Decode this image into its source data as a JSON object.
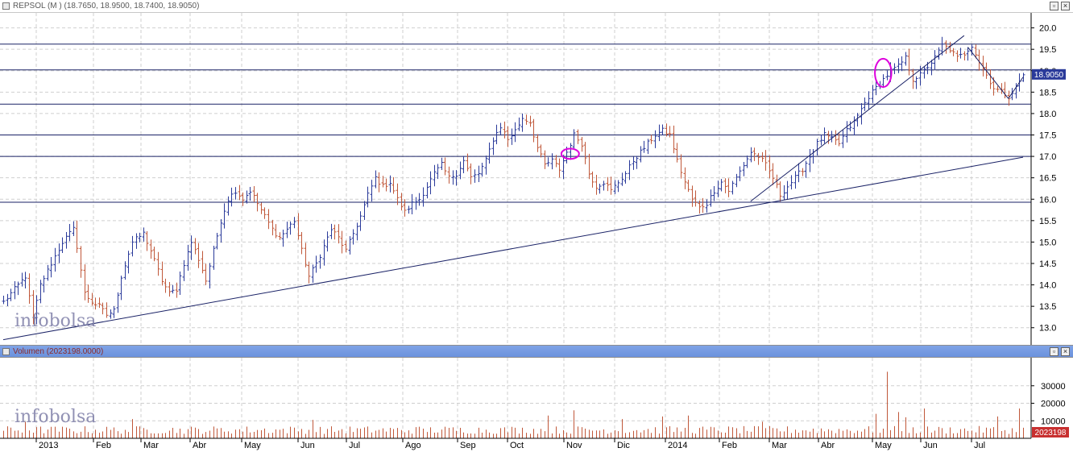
{
  "price_panel": {
    "title": "REPSOL (M ) (18.7650, 18.9500, 18.7400, 18.9050)",
    "watermark": "infobolsa",
    "last_value_label": "18.9050"
  },
  "volume_panel": {
    "title": "Volumen (2023198.0000)",
    "watermark": "infobolsa",
    "last_value_label": "2023198"
  },
  "colors": {
    "up_bar": "#2a3a9a",
    "down_bar": "#c0583a",
    "line": "#1a2266",
    "marker": "#dd00dd",
    "volume_bar": "#c0583a",
    "last_price_badge": "#2a3a9a",
    "last_volume_badge": "#c83030"
  },
  "chart_data": [
    {
      "type": "ohlc",
      "series_name": "REPSOL",
      "ohlc_last": {
        "open": 18.765,
        "high": 18.95,
        "low": 18.74,
        "close": 18.905
      },
      "y_ticks": [
        13.0,
        13.5,
        14.0,
        14.5,
        15.0,
        15.5,
        16.0,
        16.5,
        17.0,
        17.5,
        18.0,
        18.5,
        19.0,
        19.5,
        20.0
      ],
      "ylim": [
        12.6,
        20.35
      ],
      "x_labels": [
        "2013",
        "Feb",
        "Mar",
        "Abr",
        "May",
        "Jun",
        "Jul",
        "Ago",
        "Sep",
        "Oct",
        "Nov",
        "Dic",
        "2014",
        "Feb",
        "Mar",
        "Abr",
        "May",
        "Jun",
        "Jul"
      ],
      "horizontal_levels": [
        19.62,
        19.02,
        18.22,
        17.5,
        17.0,
        15.93
      ],
      "close_path": [
        [
          0,
          13.6
        ],
        [
          3,
          13.9
        ],
        [
          6,
          14.2
        ],
        [
          8,
          13.2
        ],
        [
          10,
          14.0
        ],
        [
          13,
          14.5
        ],
        [
          16,
          15.0
        ],
        [
          19,
          15.3
        ],
        [
          20,
          14.9
        ],
        [
          22,
          13.8
        ],
        [
          24,
          13.6
        ],
        [
          26,
          13.5
        ],
        [
          28,
          13.3
        ],
        [
          30,
          13.4
        ],
        [
          32,
          14.2
        ],
        [
          35,
          15.0
        ],
        [
          38,
          15.2
        ],
        [
          40,
          14.8
        ],
        [
          43,
          14.1
        ],
        [
          45,
          13.8
        ],
        [
          47,
          13.9
        ],
        [
          49,
          14.5
        ],
        [
          51,
          15.0
        ],
        [
          53,
          14.6
        ],
        [
          55,
          14.1
        ],
        [
          57,
          14.8
        ],
        [
          59,
          15.5
        ],
        [
          61,
          16.0
        ],
        [
          63,
          16.2
        ],
        [
          65,
          16.0
        ],
        [
          67,
          16.2
        ],
        [
          69,
          15.9
        ],
        [
          71,
          15.6
        ],
        [
          73,
          15.3
        ],
        [
          75,
          15.1
        ],
        [
          77,
          15.3
        ],
        [
          79,
          15.5
        ],
        [
          81,
          14.8
        ],
        [
          83,
          14.2
        ],
        [
          85,
          14.5
        ],
        [
          87,
          14.9
        ],
        [
          89,
          15.3
        ],
        [
          91,
          15.1
        ],
        [
          93,
          14.8
        ],
        [
          95,
          15.2
        ],
        [
          97,
          15.6
        ],
        [
          99,
          16.1
        ],
        [
          101,
          16.5
        ],
        [
          103,
          16.3
        ],
        [
          105,
          16.4
        ],
        [
          107,
          16.0
        ],
        [
          109,
          15.7
        ],
        [
          111,
          15.9
        ],
        [
          113,
          16.0
        ],
        [
          115,
          16.3
        ],
        [
          117,
          16.6
        ],
        [
          119,
          16.8
        ],
        [
          121,
          16.5
        ],
        [
          123,
          16.6
        ],
        [
          125,
          16.9
        ],
        [
          127,
          16.5
        ],
        [
          129,
          16.6
        ],
        [
          131,
          16.9
        ],
        [
          133,
          17.4
        ],
        [
          135,
          17.7
        ],
        [
          137,
          17.4
        ],
        [
          139,
          17.6
        ],
        [
          141,
          17.9
        ],
        [
          143,
          17.8
        ],
        [
          145,
          17.2
        ],
        [
          147,
          16.8
        ],
        [
          149,
          16.9
        ],
        [
          151,
          16.7
        ],
        [
          153,
          17.1
        ],
        [
          155,
          17.5
        ],
        [
          157,
          17.3
        ],
        [
          159,
          16.6
        ],
        [
          161,
          16.3
        ],
        [
          163,
          16.4
        ],
        [
          165,
          16.2
        ],
        [
          167,
          16.4
        ],
        [
          169,
          16.6
        ],
        [
          171,
          16.9
        ],
        [
          173,
          17.1
        ],
        [
          175,
          17.3
        ],
        [
          177,
          17.5
        ],
        [
          179,
          17.6
        ],
        [
          181,
          17.5
        ],
        [
          183,
          16.9
        ],
        [
          185,
          16.4
        ],
        [
          187,
          16.0
        ],
        [
          189,
          15.8
        ],
        [
          191,
          15.9
        ],
        [
          193,
          16.2
        ],
        [
          195,
          16.4
        ],
        [
          197,
          16.2
        ],
        [
          199,
          16.5
        ],
        [
          201,
          16.8
        ],
        [
          203,
          17.1
        ],
        [
          205,
          17.0
        ],
        [
          207,
          16.8
        ],
        [
          209,
          16.5
        ],
        [
          211,
          16.1
        ],
        [
          213,
          16.3
        ],
        [
          215,
          16.5
        ],
        [
          217,
          16.7
        ],
        [
          219,
          17.0
        ],
        [
          221,
          17.3
        ],
        [
          223,
          17.5
        ],
        [
          225,
          17.4
        ],
        [
          227,
          17.3
        ],
        [
          229,
          17.6
        ],
        [
          231,
          17.8
        ],
        [
          233,
          18.1
        ],
        [
          235,
          18.4
        ],
        [
          237,
          18.6
        ],
        [
          239,
          18.8
        ],
        [
          241,
          19.0
        ],
        [
          243,
          19.1
        ],
        [
          245,
          19.3
        ],
        [
          247,
          18.8
        ],
        [
          249,
          18.9
        ],
        [
          251,
          19.1
        ],
        [
          253,
          19.3
        ],
        [
          255,
          19.6
        ],
        [
          257,
          19.5
        ],
        [
          259,
          19.3
        ],
        [
          261,
          19.4
        ],
        [
          263,
          19.6
        ],
        [
          265,
          19.2
        ],
        [
          267,
          18.9
        ],
        [
          269,
          18.6
        ],
        [
          271,
          18.5
        ],
        [
          273,
          18.4
        ],
        [
          275,
          18.6
        ],
        [
          277,
          18.905
        ]
      ],
      "trendlines": [
        {
          "from": [
            0,
            12.72
          ],
          "to": [
            277,
            16.98
          ]
        },
        {
          "from": [
            203,
            15.95
          ],
          "to": [
            261,
            19.82
          ]
        },
        {
          "from": [
            262,
            19.55
          ],
          "to": [
            273,
            18.35
          ]
        },
        {
          "from": [
            273,
            18.35
          ],
          "to": [
            277,
            18.85
          ]
        }
      ],
      "markers": [
        {
          "type": "ellipse",
          "at": [
            154,
            17.06
          ],
          "rx_days": 1.5,
          "ry_price": 0.12
        },
        {
          "type": "ellipse",
          "at": [
            239,
            18.95
          ],
          "rx_days": 1.4,
          "ry_price": 0.33
        }
      ]
    },
    {
      "type": "bar",
      "series_name": "Volumen",
      "y_ticks": [
        10000,
        20000,
        30000
      ],
      "ylim": [
        0,
        46000
      ],
      "last_value": 2023198,
      "spikes": [
        [
          6,
          9500
        ],
        [
          35,
          11000
        ],
        [
          84,
          10500
        ],
        [
          148,
          13000
        ],
        [
          155,
          16000
        ],
        [
          168,
          11000
        ],
        [
          179,
          12500
        ],
        [
          186,
          13000
        ],
        [
          206,
          9500
        ],
        [
          237,
          14000
        ],
        [
          240,
          38000
        ],
        [
          243,
          15000
        ],
        [
          245,
          12000
        ],
        [
          250,
          17000
        ],
        [
          270,
          12500
        ],
        [
          276,
          17000
        ]
      ]
    }
  ]
}
